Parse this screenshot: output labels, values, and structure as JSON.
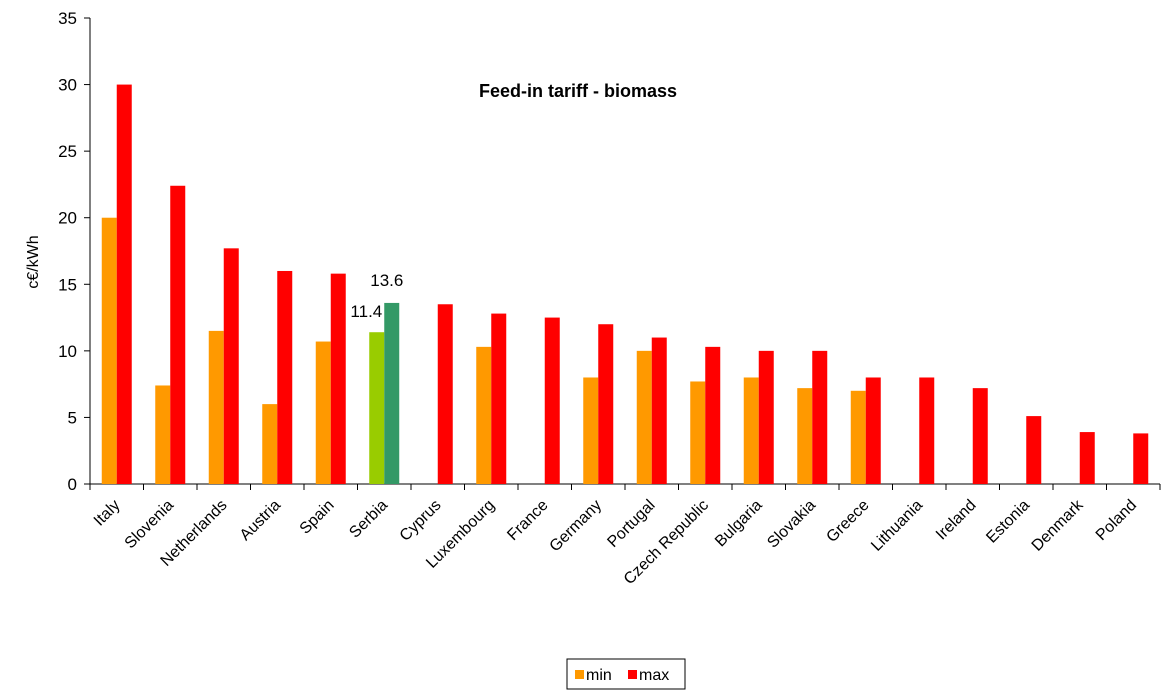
{
  "chart_data": {
    "type": "bar",
    "title": "Feed-in tariff - biomass",
    "ylabel": "c€/kWh",
    "xlabel": "",
    "ylim": [
      0,
      35
    ],
    "yticks": [
      0,
      5,
      10,
      15,
      20,
      25,
      30,
      35
    ],
    "grid": false,
    "legend_position": "bottom",
    "categories": [
      "Italy",
      "Slovenia",
      "Netherlands",
      "Austria",
      "Spain",
      "Serbia",
      "Cyprus",
      "Luxembourg",
      "France",
      "Germany",
      "Portugal",
      "Czech Republic",
      "Bulgaria",
      "Slovakia",
      "Greece",
      "Lithuania",
      "Ireland",
      "Estonia",
      "Denmark",
      "Poland"
    ],
    "series": [
      {
        "name": "min",
        "color": "#FF9900",
        "values": [
          20,
          7.4,
          11.5,
          6,
          10.7,
          11.4,
          null,
          10.3,
          null,
          8,
          10,
          7.7,
          8,
          7.2,
          7,
          null,
          null,
          null,
          null,
          null
        ]
      },
      {
        "name": "max",
        "color": "#FF0000",
        "values": [
          30,
          22.4,
          17.7,
          16,
          15.8,
          13.6,
          13.5,
          12.8,
          12.5,
          12,
          11,
          10.3,
          10,
          10,
          8,
          8,
          7.2,
          5.1,
          3.9,
          3.8
        ]
      }
    ],
    "highlight": {
      "category": "Serbia",
      "min_color": "#99CC00",
      "max_color": "#339966",
      "labels": [
        "11.4",
        "13.6"
      ]
    }
  }
}
